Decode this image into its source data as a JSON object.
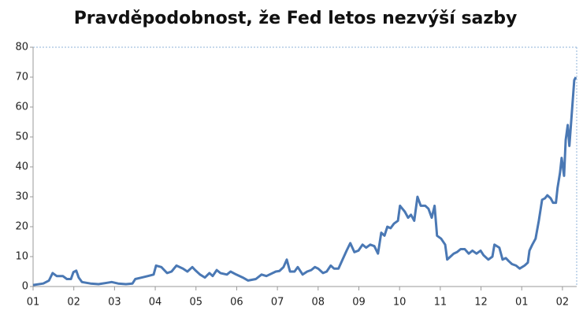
{
  "chart_data": {
    "type": "line",
    "title": "Pravděpodobnost, že Fed letos nezvýší sazby",
    "color": "#4a78b4",
    "x": [
      0,
      0.25,
      0.39,
      0.48,
      0.58,
      0.73,
      0.83,
      0.93,
      0.99,
      1.06,
      1.12,
      1.2,
      1.41,
      1.61,
      1.8,
      1.93,
      2.09,
      2.28,
      2.44,
      2.51,
      2.67,
      2.82,
      2.96,
      3.02,
      3.15,
      3.29,
      3.4,
      3.52,
      3.68,
      3.79,
      3.91,
      3.98,
      4.1,
      4.22,
      4.33,
      4.41,
      4.51,
      4.6,
      4.76,
      4.85,
      4.99,
      5.15,
      5.28,
      5.47,
      5.61,
      5.73,
      5.96,
      6.05,
      6.15,
      6.23,
      6.31,
      6.42,
      6.5,
      6.62,
      6.73,
      6.83,
      6.92,
      7.0,
      7.12,
      7.21,
      7.31,
      7.39,
      7.5,
      7.6,
      7.7,
      7.79,
      7.89,
      7.99,
      8.09,
      8.18,
      8.28,
      8.38,
      8.47,
      8.55,
      8.63,
      8.7,
      8.78,
      8.86,
      8.96,
      9.01,
      9.13,
      9.21,
      9.28,
      9.36,
      9.44,
      9.52,
      9.63,
      9.71,
      9.79,
      9.86,
      9.92,
      10.02,
      10.12,
      10.17,
      10.25,
      10.33,
      10.41,
      10.5,
      10.6,
      10.7,
      10.79,
      10.89,
      10.99,
      11.06,
      11.18,
      11.28,
      11.33,
      11.45,
      11.53,
      11.61,
      11.68,
      11.76,
      11.86,
      11.95,
      12.07,
      12.15,
      12.19,
      12.26,
      12.34,
      12.42,
      12.5,
      12.57,
      12.63,
      12.71,
      12.77,
      12.84,
      12.88,
      12.94,
      12.98,
      13.04,
      13.08,
      13.13,
      13.17,
      13.23,
      13.29,
      13.33
    ],
    "values": [
      0.5,
      1,
      2,
      4.5,
      3.5,
      3.5,
      2.5,
      2.5,
      4.8,
      5.3,
      3,
      1.5,
      1,
      0.8,
      1.2,
      1.5,
      1,
      0.8,
      1,
      2.5,
      3,
      3.5,
      4,
      7,
      6.5,
      4.5,
      5,
      7,
      6,
      5,
      6.5,
      5.5,
      4,
      3,
      4.5,
      3.5,
      5.5,
      4.5,
      4,
      5,
      4,
      3,
      2,
      2.5,
      4,
      3.5,
      5,
      5.2,
      6.5,
      9,
      5,
      5,
      6.5,
      4,
      5,
      5.5,
      6.5,
      6,
      4.5,
      5,
      7,
      6,
      6,
      9,
      12,
      14.5,
      11.5,
      12,
      14,
      13,
      14,
      13.5,
      11,
      18,
      17,
      20,
      19.5,
      21,
      22,
      27,
      25,
      23,
      24,
      22,
      30,
      27,
      27,
      26,
      23,
      27,
      17,
      16,
      14,
      9,
      10,
      11,
      11.5,
      12.5,
      12.5,
      11,
      12,
      11,
      12,
      10.5,
      9,
      10,
      14,
      13,
      9,
      9.5,
      8.5,
      7.5,
      7,
      6,
      7,
      8,
      12,
      14,
      16,
      22,
      29,
      29.5,
      30.5,
      29.5,
      28,
      28,
      33,
      38,
      43,
      37,
      49,
      54,
      47,
      58,
      69,
      70
    ],
    "xlim": [
      0,
      13.35
    ],
    "xticks": [
      {
        "value": 0,
        "label": "01"
      },
      {
        "value": 1,
        "label": "02"
      },
      {
        "value": 2,
        "label": "03"
      },
      {
        "value": 3,
        "label": "04"
      },
      {
        "value": 4,
        "label": "05"
      },
      {
        "value": 5,
        "label": "06"
      },
      {
        "value": 6,
        "label": "07"
      },
      {
        "value": 7,
        "label": "08"
      },
      {
        "value": 8,
        "label": "09"
      },
      {
        "value": 9,
        "label": "10"
      },
      {
        "value": 10,
        "label": "11"
      },
      {
        "value": 11,
        "label": "12"
      },
      {
        "value": 12,
        "label": "01"
      },
      {
        "value": 13,
        "label": "02"
      }
    ],
    "ylim": [
      0,
      80
    ],
    "yticks": [
      0,
      10,
      20,
      30,
      40,
      50,
      60,
      70,
      80
    ],
    "grid": false
  }
}
